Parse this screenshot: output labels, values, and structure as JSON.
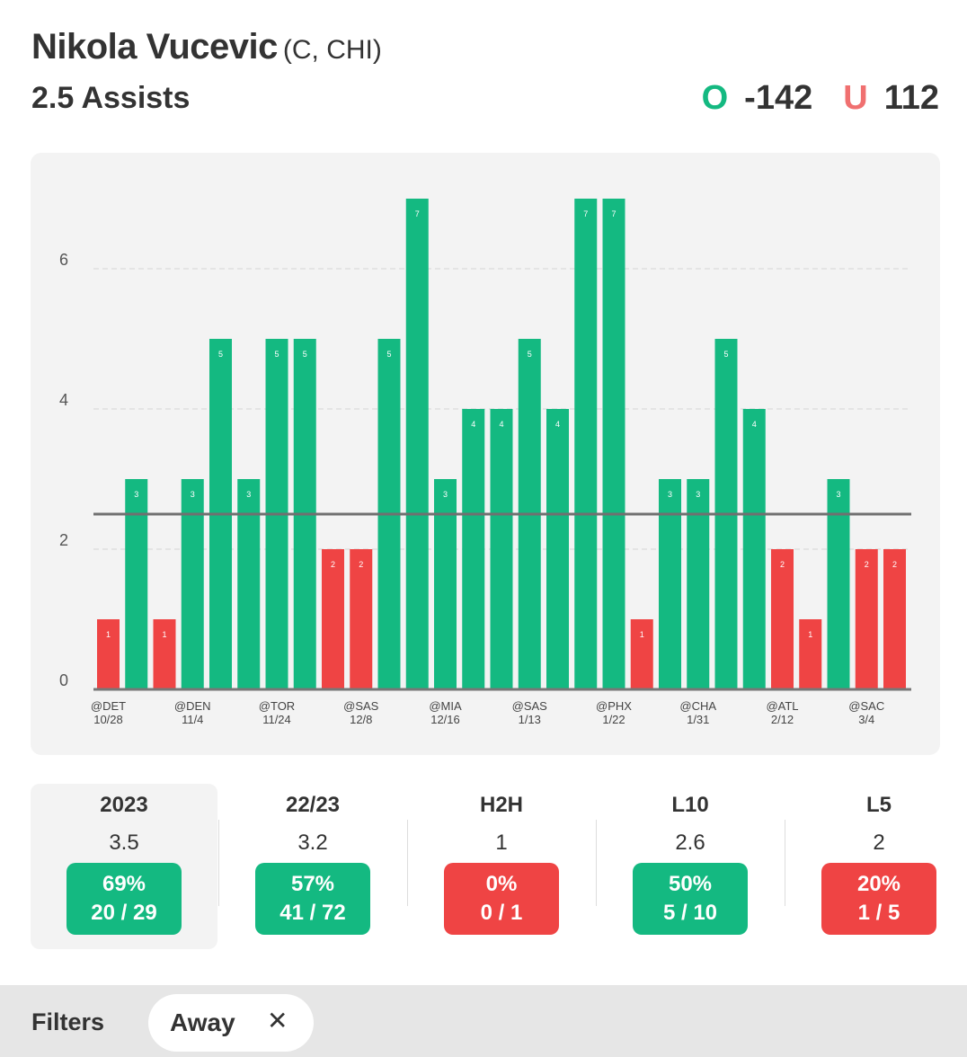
{
  "header": {
    "player_name": "Nikola Vucevic",
    "player_meta": "(C, CHI)",
    "prop": "2.5 Assists",
    "over_label": "O",
    "over_odds": "-142",
    "under_label": "U",
    "under_odds": "112"
  },
  "colors": {
    "over": "#14b981",
    "under": "#ef4444",
    "under_text": "#f07070",
    "card_bg": "#f3f3f3"
  },
  "chart_data": {
    "type": "bar",
    "title": "",
    "xlabel": "",
    "ylabel": "",
    "ylim": [
      0,
      7
    ],
    "yticks": [
      0,
      2,
      4,
      6
    ],
    "threshold": 2.5,
    "values": [
      1,
      3,
      1,
      3,
      5,
      3,
      5,
      5,
      2,
      2,
      5,
      7,
      3,
      4,
      4,
      5,
      4,
      7,
      7,
      1,
      3,
      3,
      5,
      4,
      2,
      1,
      3,
      2,
      2
    ],
    "tick_labels": [
      {
        "index": 0,
        "opponent": "@DET",
        "date": "10/28"
      },
      {
        "index": 3,
        "opponent": "@DEN",
        "date": "11/4"
      },
      {
        "index": 6,
        "opponent": "@TOR",
        "date": "11/24"
      },
      {
        "index": 9,
        "opponent": "@SAS",
        "date": "12/8"
      },
      {
        "index": 12,
        "opponent": "@MIA",
        "date": "12/16"
      },
      {
        "index": 15,
        "opponent": "@SAS",
        "date": "1/13"
      },
      {
        "index": 18,
        "opponent": "@PHX",
        "date": "1/22"
      },
      {
        "index": 21,
        "opponent": "@CHA",
        "date": "1/31"
      },
      {
        "index": 24,
        "opponent": "@ATL",
        "date": "2/12"
      },
      {
        "index": 27,
        "opponent": "@SAC",
        "date": "3/4"
      }
    ]
  },
  "stats": [
    {
      "label": "2023",
      "avg": "3.5",
      "pct": "69%",
      "record": "20 / 29",
      "status": "green",
      "active": true
    },
    {
      "label": "22/23",
      "avg": "3.2",
      "pct": "57%",
      "record": "41 / 72",
      "status": "green",
      "active": false
    },
    {
      "label": "H2H",
      "avg": "1",
      "pct": "0%",
      "record": "0 / 1",
      "status": "red",
      "active": false
    },
    {
      "label": "L10",
      "avg": "2.6",
      "pct": "50%",
      "record": "5 / 10",
      "status": "green",
      "active": false
    },
    {
      "label": "L5",
      "avg": "2",
      "pct": "20%",
      "record": "1 / 5",
      "status": "red",
      "active": false
    }
  ],
  "filters": {
    "label": "Filters",
    "chip_label": "Away",
    "chip_close": "✕"
  }
}
